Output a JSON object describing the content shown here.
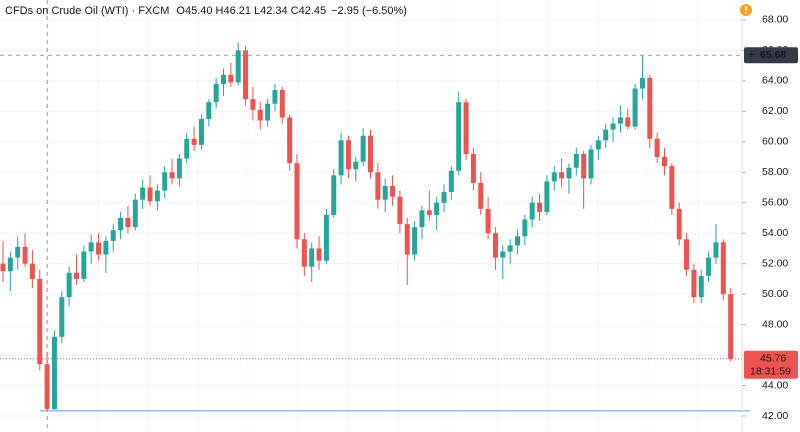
{
  "chart_data": {
    "type": "candlestick",
    "title": "CFDs on Crude Oil (WTI) · FXCM",
    "legend_values": [
      {
        "label": "O",
        "value": "45.40"
      },
      {
        "label": "H",
        "value": "46.21"
      },
      {
        "label": "L",
        "value": "42.34"
      },
      {
        "label": "C",
        "value": "42.45"
      }
    ],
    "change": "−2.95 (−6.50%)",
    "up_color": "#26a69a",
    "down_color": "#ef5350",
    "ylim": [
      40.95,
      69.31
    ],
    "yticks": [
      {
        "value": 42,
        "label": "42.00"
      },
      {
        "value": 44,
        "label": "44.00"
      },
      {
        "value": 46,
        "label": "46.00"
      },
      {
        "value": 48,
        "label": "48.00"
      },
      {
        "value": 50,
        "label": "50.00"
      },
      {
        "value": 52,
        "label": "52.00"
      },
      {
        "value": 54,
        "label": "54.00"
      },
      {
        "value": 56,
        "label": "56.00"
      },
      {
        "value": 58,
        "label": "58.00"
      },
      {
        "value": 60,
        "label": "60.00"
      },
      {
        "value": 62,
        "label": "62.00"
      },
      {
        "value": 64,
        "label": "64.00"
      },
      {
        "value": 66,
        "label": "66.00"
      },
      {
        "value": 68,
        "label": "68.00"
      }
    ],
    "grid": true,
    "crosshair_price": {
      "value": 65.68,
      "label": "65.68"
    },
    "last_price": {
      "value": 45.76,
      "label": "45.76"
    },
    "countdown": "18:31:59",
    "horizontal_line": 42.34,
    "candles": [
      [
        52,
        53.5,
        50.8,
        51.5
      ],
      [
        51.5,
        52.8,
        50.2,
        52.4
      ],
      [
        52.4,
        53.8,
        51.6,
        53.1
      ],
      [
        53.1,
        54,
        51.8,
        52
      ],
      [
        52,
        52.9,
        50.4,
        51
      ],
      [
        51,
        51.6,
        45,
        45.4
      ],
      [
        45.4,
        46.21,
        42.34,
        42.45
      ],
      [
        42.45,
        47.6,
        42.4,
        47.2
      ],
      [
        47.2,
        50.2,
        46.8,
        49.8
      ],
      [
        49.8,
        51.8,
        49.2,
        51.4
      ],
      [
        51.4,
        52.6,
        50.6,
        51
      ],
      [
        51,
        53.2,
        50.8,
        52.8
      ],
      [
        52.8,
        53.9,
        52,
        53.4
      ],
      [
        53.4,
        54,
        52.2,
        52.6
      ],
      [
        52.6,
        53.8,
        51.4,
        53.5
      ],
      [
        53.5,
        54.6,
        52.8,
        54.2
      ],
      [
        54.2,
        55.4,
        53.6,
        55
      ],
      [
        55,
        55.8,
        54,
        54.4
      ],
      [
        54.4,
        56.6,
        54.2,
        56.2
      ],
      [
        56.2,
        57.5,
        55.6,
        57
      ],
      [
        57,
        57.8,
        55.8,
        56.1
      ],
      [
        56.1,
        57.2,
        55.5,
        56.8
      ],
      [
        56.8,
        58.4,
        56.3,
        58
      ],
      [
        58,
        58.9,
        57.2,
        57.6
      ],
      [
        57.6,
        59.2,
        57.1,
        58.9
      ],
      [
        58.9,
        60.6,
        58.6,
        60.2
      ],
      [
        60.2,
        61,
        59.4,
        59.8
      ],
      [
        59.8,
        61.8,
        59.5,
        61.5
      ],
      [
        61.5,
        62.8,
        61,
        62.6
      ],
      [
        62.6,
        64.2,
        62.2,
        63.8
      ],
      [
        63.8,
        64.8,
        63,
        64.4
      ],
      [
        64.4,
        65.2,
        63.6,
        63.9
      ],
      [
        63.9,
        66.5,
        63.7,
        66
      ],
      [
        66,
        66.3,
        62.4,
        62.8
      ],
      [
        62.8,
        63.6,
        61.4,
        62.1
      ],
      [
        62.1,
        62.6,
        60.8,
        61.4
      ],
      [
        61.4,
        62.8,
        61,
        62.5
      ],
      [
        62.5,
        63.8,
        62,
        63.4
      ],
      [
        63.4,
        63.6,
        61.2,
        61.6
      ],
      [
        61.6,
        61.8,
        58.1,
        58.6
      ],
      [
        58.6,
        59.2,
        53,
        53.6
      ],
      [
        53.6,
        54,
        51.2,
        51.8
      ],
      [
        51.8,
        53.4,
        50.8,
        53
      ],
      [
        53,
        53.8,
        51.6,
        52.2
      ],
      [
        52.2,
        55.6,
        52,
        55.2
      ],
      [
        55.2,
        58.2,
        55,
        57.8
      ],
      [
        57.8,
        60.6,
        57.2,
        60.1
      ],
      [
        60.1,
        60.4,
        57.6,
        58.2
      ],
      [
        58.2,
        59,
        57.4,
        58.7
      ],
      [
        58.7,
        60.9,
        58.4,
        60.4
      ],
      [
        60.4,
        60.8,
        57.6,
        58
      ],
      [
        58,
        58.6,
        55.6,
        56.2
      ],
      [
        56.2,
        57.6,
        55.4,
        57.1
      ],
      [
        57.1,
        57.8,
        55.8,
        56.4
      ],
      [
        56.4,
        56.8,
        54,
        54.6
      ],
      [
        54.6,
        55,
        50.6,
        52.6
      ],
      [
        52.6,
        54.8,
        52.2,
        54.4
      ],
      [
        54.4,
        55.8,
        53.6,
        55.5
      ],
      [
        55.5,
        56.8,
        54.8,
        55.2
      ],
      [
        55.2,
        56.4,
        54.2,
        56
      ],
      [
        56,
        57.2,
        55.4,
        56.7
      ],
      [
        56.7,
        58.4,
        56.2,
        58.1
      ],
      [
        58.1,
        63.3,
        57.8,
        62.6
      ],
      [
        62.6,
        62.8,
        58.8,
        59.2
      ],
      [
        59.2,
        59.6,
        56.8,
        57.3
      ],
      [
        57.3,
        58,
        55.2,
        55.6
      ],
      [
        55.6,
        56.4,
        53.6,
        54
      ],
      [
        54,
        54.4,
        51.6,
        52.4
      ],
      [
        52.4,
        53.2,
        51,
        52.8
      ],
      [
        52.8,
        53.6,
        52,
        53.2
      ],
      [
        53.2,
        54.2,
        52.6,
        53.8
      ],
      [
        53.8,
        55.2,
        53.2,
        54.9
      ],
      [
        54.9,
        56.4,
        54.4,
        56
      ],
      [
        56,
        56.6,
        54.8,
        55.4
      ],
      [
        55.4,
        57.8,
        55.2,
        57.4
      ],
      [
        57.4,
        58.4,
        56.8,
        58
      ],
      [
        58,
        58.9,
        57,
        57.6
      ],
      [
        57.6,
        58.6,
        56.6,
        58.3
      ],
      [
        58.3,
        59.6,
        57.8,
        59.2
      ],
      [
        59.2,
        59.4,
        55.6,
        57.6
      ],
      [
        57.6,
        59.8,
        57.2,
        59.5
      ],
      [
        59.5,
        60.4,
        58.8,
        60.1
      ],
      [
        60.1,
        61.2,
        59.6,
        60.8
      ],
      [
        60.8,
        61.6,
        60,
        61.2
      ],
      [
        61.2,
        62.4,
        60.6,
        61.6
      ],
      [
        61.6,
        62.2,
        60.8,
        61
      ],
      [
        61,
        63.8,
        60.8,
        63.5
      ],
      [
        63.5,
        65.7,
        62.8,
        64.2
      ],
      [
        64.2,
        64.4,
        59.6,
        60.2
      ],
      [
        60.2,
        60.6,
        58.6,
        59
      ],
      [
        59,
        59.6,
        57.8,
        58.4
      ],
      [
        58.4,
        58.6,
        55.2,
        55.6
      ],
      [
        55.6,
        56,
        53.2,
        53.6
      ],
      [
        53.6,
        54,
        51.2,
        51.6
      ],
      [
        51.6,
        52,
        49.4,
        49.8
      ],
      [
        49.8,
        51.6,
        49.4,
        51.2
      ],
      [
        51.2,
        52.8,
        50.8,
        52.4
      ],
      [
        52.4,
        54.6,
        52,
        53.4
      ],
      [
        53.4,
        53.6,
        49.6,
        50
      ],
      [
        50,
        50.4,
        45.6,
        45.76
      ]
    ]
  }
}
